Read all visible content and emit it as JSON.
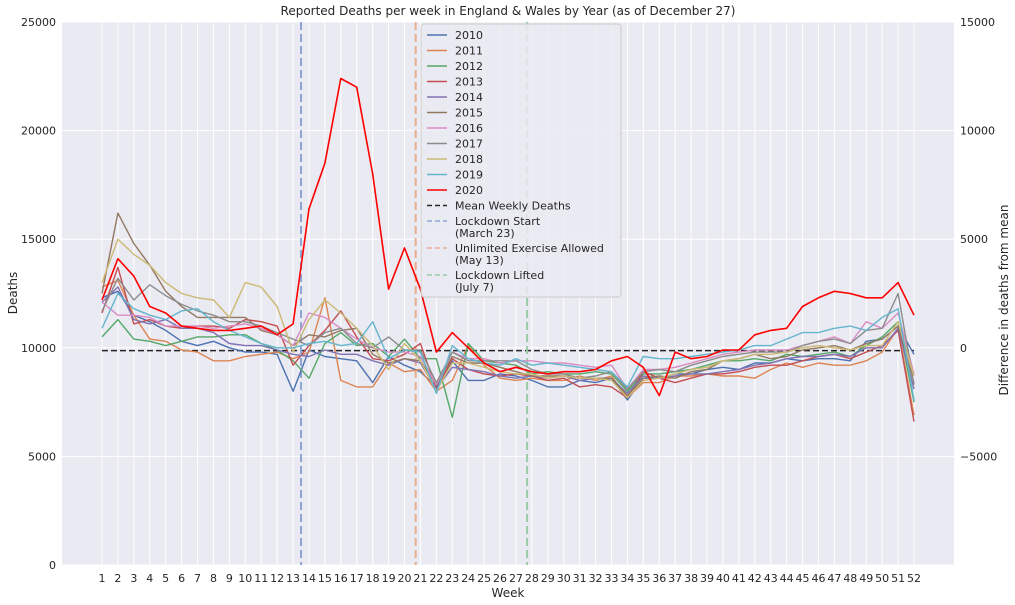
{
  "chart_data": {
    "type": "line",
    "title": "Reported Deaths per week in England & Wales by Year (as of December 27)",
    "xlabel": "Week",
    "ylabel": "Deaths",
    "ylabel_right": "Difference in deaths from mean",
    "ylim": [
      0,
      25000
    ],
    "ylim_right": [
      -10000,
      15000
    ],
    "yticks": [
      0,
      5000,
      10000,
      15000,
      20000,
      25000
    ],
    "yticks_right": [
      -5000,
      0,
      5000,
      10000,
      15000
    ],
    "x": [
      1,
      2,
      3,
      4,
      5,
      6,
      7,
      8,
      9,
      10,
      11,
      12,
      13,
      14,
      15,
      16,
      17,
      18,
      19,
      20,
      21,
      22,
      23,
      24,
      25,
      26,
      27,
      28,
      29,
      30,
      31,
      32,
      33,
      34,
      35,
      36,
      37,
      38,
      39,
      40,
      41,
      42,
      43,
      44,
      45,
      46,
      47,
      48,
      49,
      50,
      51,
      52
    ],
    "grid": true,
    "legend_position": "upper center",
    "background": "#eaeaf2",
    "mean_weekly_deaths": 9870,
    "series": [
      {
        "name": "2010",
        "color": "#4c72b0",
        "values": [
          12300,
          12600,
          11500,
          11200,
          10800,
          10300,
          10100,
          10300,
          10000,
          9800,
          9800,
          9700,
          8000,
          9900,
          9600,
          9500,
          9400,
          8400,
          9600,
          9200,
          8900,
          8200,
          9400,
          8500,
          8500,
          8800,
          8700,
          8500,
          8200,
          8200,
          8500,
          8400,
          8600,
          7600,
          8600,
          8600,
          8800,
          8800,
          9000,
          9100,
          9000,
          9300,
          9300,
          9500,
          9400,
          9500,
          9500,
          9400,
          10300,
          10400,
          11000,
          9700
        ]
      },
      {
        "name": "2011",
        "color": "#dd8452",
        "values": [
          12800,
          13100,
          11500,
          10400,
          10300,
          9900,
          9800,
          9400,
          9400,
          9600,
          9700,
          9800,
          9500,
          9800,
          12300,
          8500,
          8200,
          8200,
          9300,
          8900,
          9000,
          8000,
          8500,
          10100,
          9200,
          8600,
          8500,
          8600,
          8500,
          8500,
          8700,
          8500,
          8700,
          7700,
          8400,
          8400,
          8700,
          8700,
          8800,
          8700,
          8700,
          8600,
          9000,
          9300,
          9100,
          9300,
          9200,
          9200,
          9400,
          9800,
          10900,
          6900
        ]
      },
      {
        "name": "2012",
        "color": "#55a868",
        "values": [
          10500,
          11300,
          10400,
          10300,
          10100,
          10300,
          10500,
          10500,
          10600,
          10600,
          10200,
          9900,
          9400,
          8600,
          10200,
          10700,
          10100,
          10200,
          9600,
          10400,
          9500,
          9500,
          6800,
          10200,
          9400,
          9300,
          9200,
          8800,
          8900,
          8800,
          8800,
          8900,
          8800,
          8000,
          8800,
          8800,
          8900,
          9000,
          9200,
          9400,
          9400,
          9500,
          9400,
          9700,
          9600,
          9700,
          9800,
          9600,
          10100,
          10500,
          11200,
          7500
        ]
      },
      {
        "name": "2013",
        "color": "#c44e52",
        "values": [
          11600,
          13700,
          11100,
          11300,
          11000,
          10900,
          11000,
          11000,
          10900,
          11300,
          11200,
          11000,
          9200,
          10100,
          10800,
          11700,
          10500,
          9500,
          9400,
          9700,
          10200,
          8100,
          9500,
          9000,
          8800,
          8700,
          8800,
          8700,
          8500,
          8600,
          8200,
          8300,
          8200,
          7700,
          8900,
          8600,
          8400,
          8600,
          8800,
          8800,
          8900,
          9100,
          9200,
          9200,
          9400,
          9600,
          9700,
          9500,
          9800,
          10100,
          10800,
          6600
        ]
      },
      {
        "name": "2014",
        "color": "#8172b3",
        "values": [
          12100,
          12800,
          11300,
          11100,
          11300,
          10900,
          10900,
          10700,
          10200,
          10100,
          10100,
          9900,
          9700,
          9600,
          9900,
          9700,
          9700,
          9400,
          9200,
          9500,
          9300,
          8100,
          9100,
          9000,
          8900,
          8700,
          8600,
          8700,
          8600,
          8700,
          8500,
          8600,
          8600,
          7900,
          8700,
          8600,
          8700,
          8800,
          8800,
          8900,
          9000,
          9200,
          9300,
          9500,
          9600,
          9600,
          9700,
          9600,
          10000,
          10000,
          10900,
          8100
        ]
      },
      {
        "name": "2015",
        "color": "#937860",
        "values": [
          12500,
          16200,
          14800,
          13800,
          12600,
          11900,
          11400,
          11400,
          11400,
          11400,
          10800,
          10600,
          10100,
          10600,
          10500,
          10800,
          10900,
          9700,
          9300,
          9500,
          9400,
          8300,
          9600,
          9300,
          9300,
          9100,
          8900,
          8700,
          8700,
          8700,
          8600,
          8600,
          8600,
          7800,
          8600,
          8700,
          8600,
          8900,
          9000,
          9400,
          9500,
          9700,
          9500,
          9600,
          9900,
          10000,
          10100,
          9900,
          10200,
          10400,
          11000,
          8400
        ]
      },
      {
        "name": "2016",
        "color": "#da8bc3",
        "values": [
          12100,
          11500,
          11500,
          11400,
          11000,
          11000,
          11000,
          10900,
          11000,
          11100,
          10900,
          10600,
          10100,
          11600,
          11400,
          10900,
          10400,
          10000,
          9800,
          9800,
          9600,
          8300,
          9800,
          9500,
          9500,
          9300,
          9400,
          9400,
          9300,
          9300,
          9200,
          9100,
          9200,
          8100,
          9000,
          9000,
          9100,
          9300,
          9500,
          9700,
          9800,
          9900,
          9900,
          9900,
          10100,
          10300,
          10500,
          10200,
          11200,
          10900,
          11600,
          8800
        ]
      },
      {
        "name": "2017",
        "color": "#8c8c8c",
        "values": [
          11700,
          13200,
          12200,
          12900,
          12400,
          12000,
          11700,
          11500,
          11200,
          11200,
          11000,
          10700,
          10400,
          10100,
          10700,
          10900,
          10200,
          10000,
          10500,
          9900,
          9900,
          8400,
          9800,
          9400,
          9400,
          9400,
          9400,
          9000,
          8800,
          8800,
          8600,
          8700,
          8900,
          8100,
          8900,
          9000,
          8900,
          9200,
          9400,
          9600,
          9700,
          9800,
          9800,
          9800,
          10100,
          10300,
          10400,
          10200,
          10800,
          10900,
          12500,
          8300
        ]
      },
      {
        "name": "2018",
        "color": "#ccb974",
        "values": [
          13000,
          15000,
          14300,
          13800,
          13000,
          12500,
          12300,
          12200,
          11400,
          13000,
          12800,
          11900,
          9800,
          11300,
          12200,
          11600,
          10900,
          10100,
          9000,
          10200,
          9400,
          8000,
          9300,
          9300,
          9100,
          8900,
          8800,
          8800,
          8600,
          8700,
          8600,
          8600,
          8500,
          7700,
          8500,
          8600,
          8800,
          9000,
          9100,
          9400,
          9500,
          9700,
          9700,
          9800,
          10000,
          10100,
          10000,
          9900,
          10100,
          10100,
          11200,
          8700
        ]
      },
      {
        "name": "2019",
        "color": "#64b5cd",
        "values": [
          10900,
          12500,
          11800,
          11500,
          11300,
          11700,
          11800,
          11200,
          10800,
          10500,
          10200,
          10000,
          10000,
          10200,
          10300,
          10100,
          10200,
          11200,
          9500,
          9900,
          9800,
          7900,
          10100,
          9500,
          9300,
          9200,
          9500,
          9200,
          9300,
          9200,
          9100,
          9000,
          8900,
          8200,
          9600,
          9500,
          9500,
          9600,
          9700,
          9800,
          9900,
          10100,
          10100,
          10400,
          10700,
          10700,
          10900,
          11000,
          10800,
          11400,
          11800,
          7600
        ]
      },
      {
        "name": "2020",
        "color": "#ff0000",
        "values": [
          12200,
          14100,
          13300,
          11900,
          11600,
          11000,
          10900,
          10800,
          10800,
          10900,
          11000,
          10600,
          11100,
          16400,
          18500,
          22400,
          22000,
          18000,
          12700,
          14600,
          12700,
          9800,
          10700,
          10000,
          9300,
          8900,
          9100,
          8900,
          8800,
          8900,
          8900,
          9000,
          9400,
          9600,
          9100,
          7800,
          9800,
          9500,
          9600,
          9900,
          9900,
          10600,
          10800,
          10900,
          11900,
          12300,
          12600,
          12500,
          12300,
          12300,
          13000,
          11500
        ]
      }
    ],
    "reference_lines": [
      {
        "name": "Mean Weekly Deaths",
        "type": "horizontal",
        "value": 9870,
        "color": "#262626",
        "label": "Mean Weekly Deaths"
      },
      {
        "name": "Lockdown Start",
        "type": "vertical",
        "week": 13.5,
        "color": "#8fa6d4",
        "label_line1": "Lockdown Start",
        "label_line2": "(March 23)"
      },
      {
        "name": "Unlimited Exercise Allowed",
        "type": "vertical",
        "week": 20.7,
        "color": "#e8ad8e",
        "label_line1": "Unlimited Exercise Allowed",
        "label_line2": "(May 13)"
      },
      {
        "name": "Lockdown Lifted",
        "type": "vertical",
        "week": 27.7,
        "color": "#9ccaa6",
        "label_line1": "Lockdown Lifted",
        "label_line2": "(July 7)"
      }
    ]
  }
}
